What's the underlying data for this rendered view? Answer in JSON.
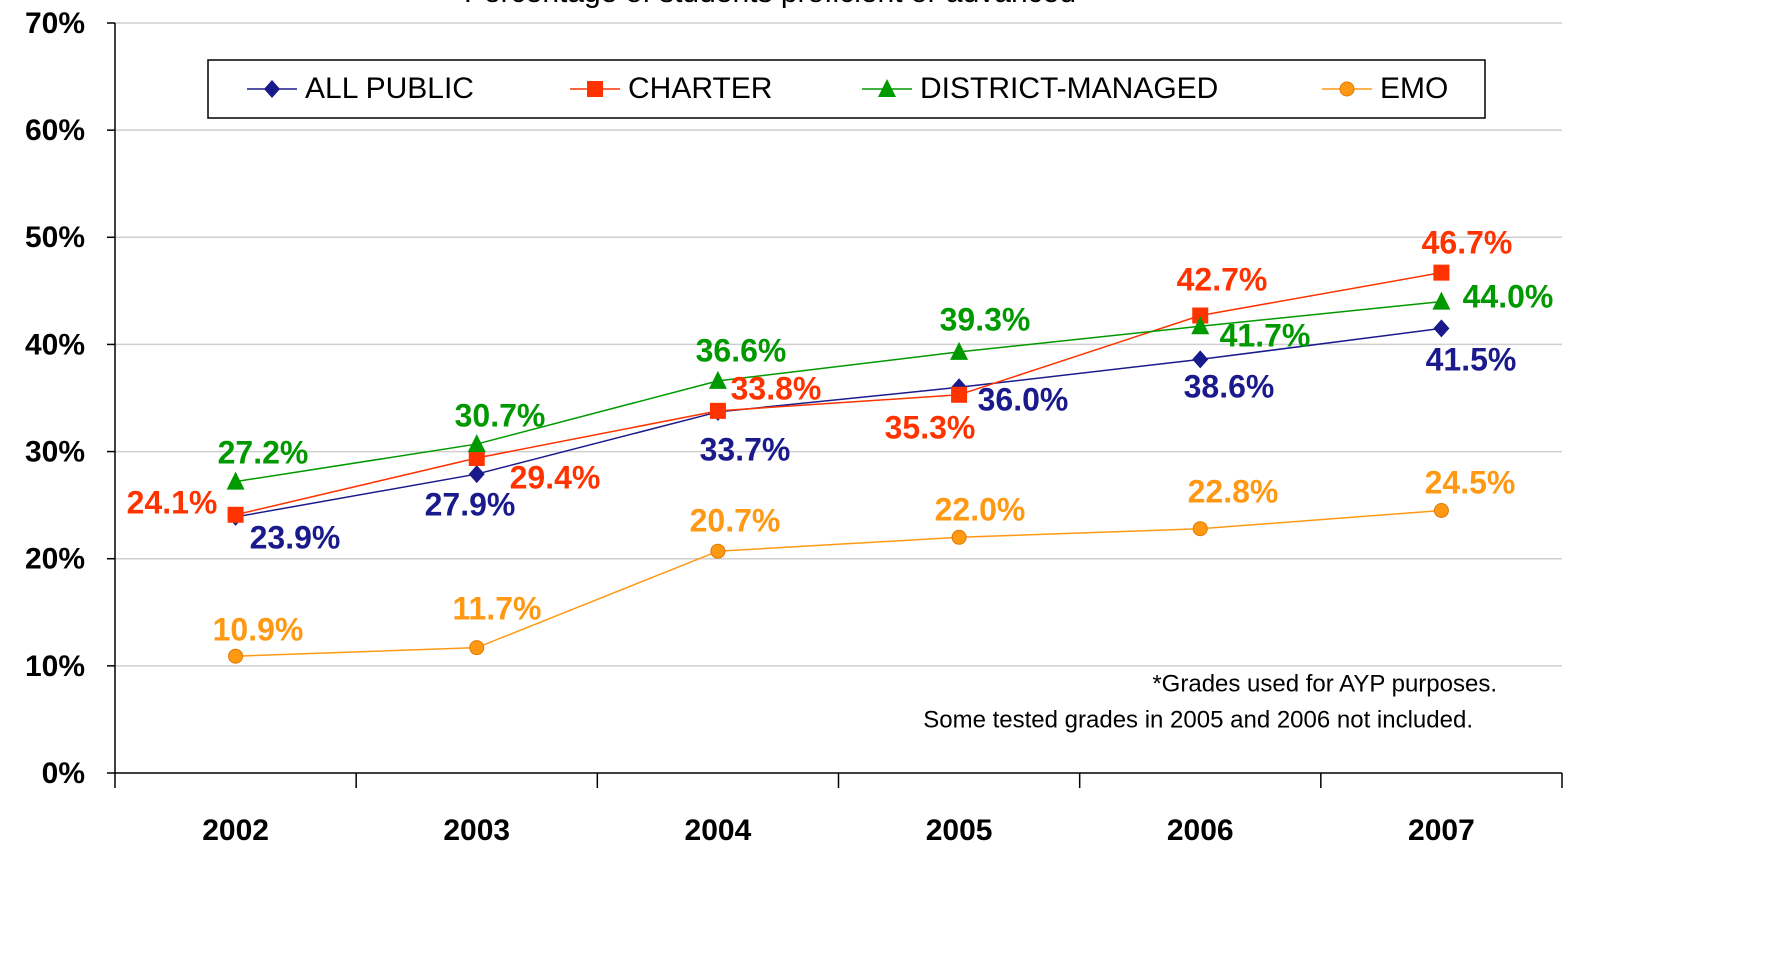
{
  "chart_data": {
    "type": "line",
    "title": "Percentage of students proficient or advanced",
    "categories": [
      "2002",
      "2003",
      "2004",
      "2005",
      "2006",
      "2007"
    ],
    "series": [
      {
        "name": "ALL PUBLIC",
        "color": "#1a1a8c",
        "marker": "diamond",
        "values": [
          23.9,
          27.9,
          33.7,
          36.0,
          38.6,
          41.5
        ],
        "value_labels": [
          "23.9%",
          "27.9%",
          "33.7%",
          "36.0%",
          "38.6%",
          "41.5%"
        ]
      },
      {
        "name": "CHARTER",
        "color": "#ff3300",
        "marker": "square",
        "values": [
          24.1,
          29.4,
          33.8,
          35.3,
          42.7,
          46.7
        ],
        "value_labels": [
          "24.1%",
          "29.4%",
          "33.8%",
          "35.3%",
          "42.7%",
          "46.7%"
        ]
      },
      {
        "name": "DISTRICT-MANAGED",
        "color": "#009900",
        "marker": "triangle",
        "values": [
          27.2,
          30.7,
          36.6,
          39.3,
          41.7,
          44.0
        ],
        "value_labels": [
          "27.2%",
          "30.7%",
          "36.6%",
          "39.3%",
          "41.7%",
          "44.0%"
        ]
      },
      {
        "name": "EMO",
        "color": "#ff9914",
        "marker": "circle",
        "values": [
          10.9,
          11.7,
          20.7,
          22.0,
          22.8,
          24.5
        ],
        "value_labels": [
          "10.9%",
          "11.7%",
          "20.7%",
          "22.0%",
          "22.8%",
          "24.5%"
        ]
      }
    ],
    "ylim": [
      0,
      70
    ],
    "yticks": [
      {
        "value": 0,
        "label": "0%"
      },
      {
        "value": 10,
        "label": "10%"
      },
      {
        "value": 20,
        "label": "20%"
      },
      {
        "value": 30,
        "label": "30%"
      },
      {
        "value": 40,
        "label": "40%"
      },
      {
        "value": 50,
        "label": "50%"
      },
      {
        "value": 60,
        "label": "60%"
      },
      {
        "value": 70,
        "label": "70%"
      }
    ],
    "grid": true,
    "legend": "top",
    "annotations": [
      "*Grades used for AYP purposes.",
      "Some tested grades in 2005 and 2006 not included."
    ]
  }
}
